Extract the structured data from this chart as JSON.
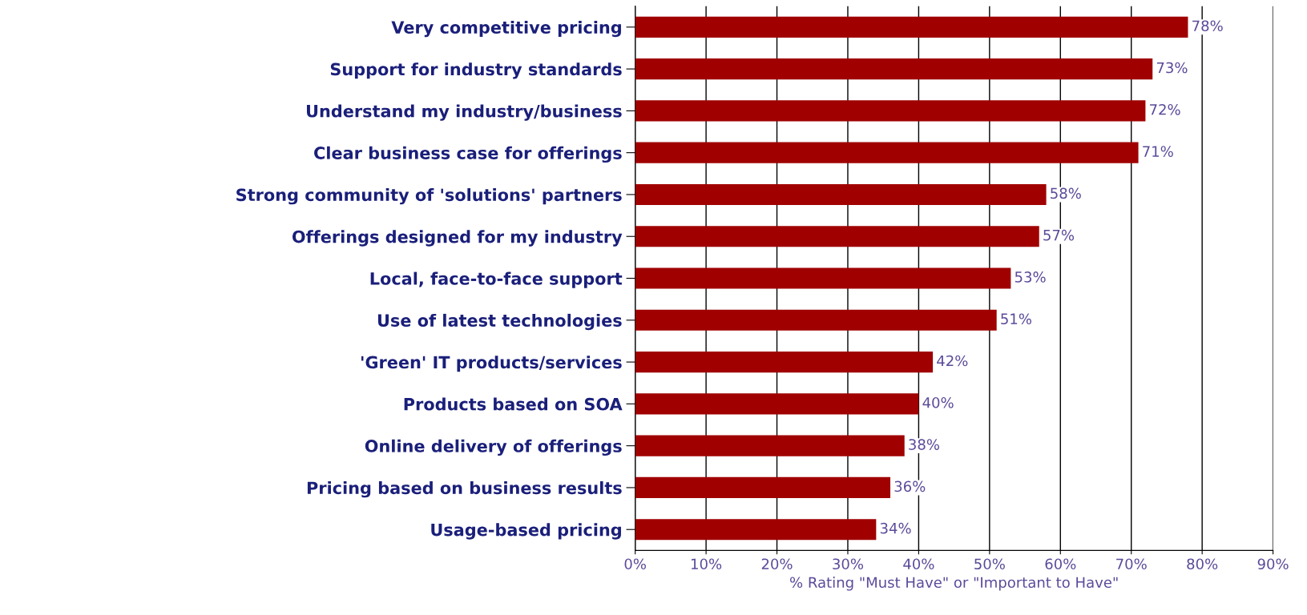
{
  "chart_data": {
    "type": "bar",
    "orientation": "horizontal",
    "xlabel": "% Rating \"Must Have\" or \"Important to Have\"",
    "categories": [
      "Very competitive pricing",
      "Support for industry standards",
      "Understand my industry/business",
      "Clear business case for offerings",
      "Strong community of 'solutions' partners",
      "Offerings designed for my industry",
      "Local, face-to-face support",
      "Use of latest technologies",
      "'Green' IT products/services",
      "Products based on SOA",
      "Online delivery of offerings",
      "Pricing based on business results",
      "Usage-based pricing"
    ],
    "values": [
      78,
      73,
      72,
      71,
      58,
      57,
      53,
      51,
      42,
      40,
      38,
      36,
      34
    ],
    "value_labels": [
      "78%",
      "73%",
      "72%",
      "71%",
      "58%",
      "57%",
      "53%",
      "51%",
      "42%",
      "40%",
      "38%",
      "36%",
      "34%"
    ],
    "color": "#a00000",
    "xlim": [
      0,
      90
    ],
    "xticks": [
      {
        "value": 0,
        "label": "0%"
      },
      {
        "value": 10,
        "label": "10%"
      },
      {
        "value": 20,
        "label": "20%"
      },
      {
        "value": 30,
        "label": "30%"
      },
      {
        "value": 40,
        "label": "40%"
      },
      {
        "value": 50,
        "label": "50%"
      },
      {
        "value": 60,
        "label": "60%"
      },
      {
        "value": 70,
        "label": "70%"
      },
      {
        "value": 80,
        "label": "80%"
      },
      {
        "value": 90,
        "label": "90%"
      }
    ],
    "grid": "x",
    "legend": false
  }
}
